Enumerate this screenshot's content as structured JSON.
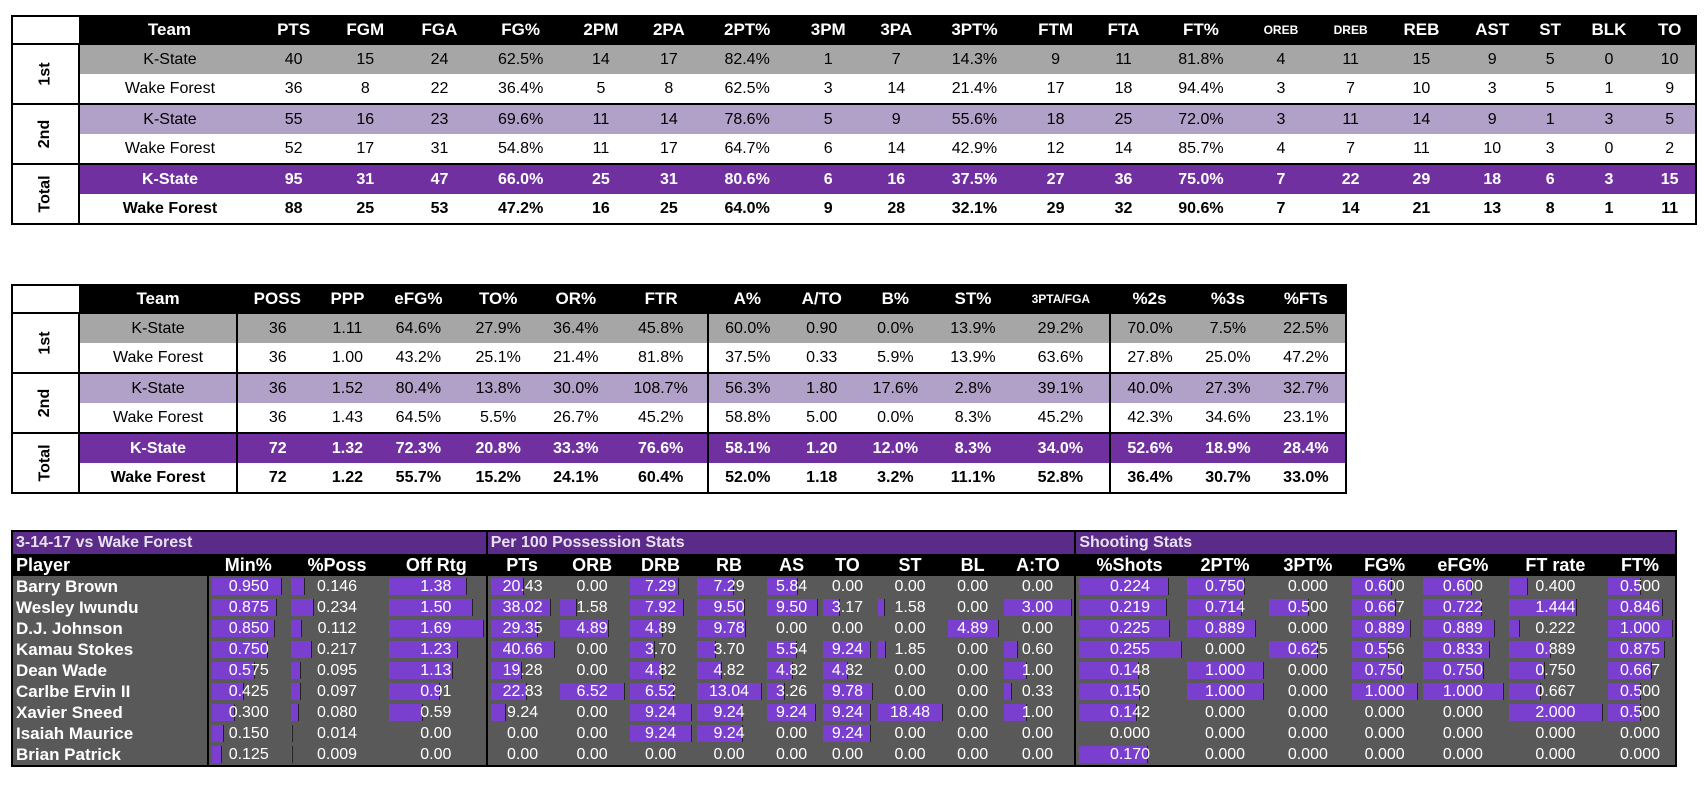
{
  "box_score": {
    "headers": [
      "Team",
      "PTS",
      "FGM",
      "FGA",
      "FG%",
      "2PM",
      "2PA",
      "2PT%",
      "3PM",
      "3PA",
      "3PT%",
      "FTM",
      "FTA",
      "FT%",
      "OREB",
      "DREB",
      "REB",
      "AST",
      "ST",
      "BLK",
      "TO"
    ],
    "periods": [
      {
        "label": "1st",
        "rows": [
          [
            "K-State",
            "40",
            "15",
            "24",
            "62.5%",
            "14",
            "17",
            "82.4%",
            "1",
            "7",
            "14.3%",
            "9",
            "11",
            "81.8%",
            "4",
            "11",
            "15",
            "9",
            "5",
            "0",
            "10"
          ],
          [
            "Wake Forest",
            "36",
            "8",
            "22",
            "36.4%",
            "5",
            "8",
            "62.5%",
            "3",
            "14",
            "21.4%",
            "17",
            "18",
            "94.4%",
            "3",
            "7",
            "10",
            "3",
            "5",
            "1",
            "9"
          ]
        ]
      },
      {
        "label": "2nd",
        "rows": [
          [
            "K-State",
            "55",
            "16",
            "23",
            "69.6%",
            "11",
            "14",
            "78.6%",
            "5",
            "9",
            "55.6%",
            "18",
            "25",
            "72.0%",
            "3",
            "11",
            "14",
            "9",
            "1",
            "3",
            "5"
          ],
          [
            "Wake Forest",
            "52",
            "17",
            "31",
            "54.8%",
            "11",
            "17",
            "64.7%",
            "6",
            "14",
            "42.9%",
            "12",
            "14",
            "85.7%",
            "4",
            "7",
            "11",
            "10",
            "3",
            "0",
            "2"
          ]
        ]
      },
      {
        "label": "Total",
        "rows": [
          [
            "K-State",
            "95",
            "31",
            "47",
            "66.0%",
            "25",
            "31",
            "80.6%",
            "6",
            "16",
            "37.5%",
            "27",
            "36",
            "75.0%",
            "7",
            "22",
            "29",
            "18",
            "6",
            "3",
            "15"
          ],
          [
            "Wake Forest",
            "88",
            "25",
            "53",
            "47.2%",
            "16",
            "25",
            "64.0%",
            "9",
            "28",
            "32.1%",
            "29",
            "32",
            "90.6%",
            "7",
            "14",
            "21",
            "13",
            "8",
            "1",
            "11"
          ]
        ]
      }
    ]
  },
  "advanced": {
    "headers": [
      "Team",
      "POSS",
      "PPP",
      "eFG%",
      "TO%",
      "OR%",
      "FTR",
      "A%",
      "A/TO",
      "B%",
      "ST%",
      "3PTA/FGA",
      "%2s",
      "%3s",
      "%FTs"
    ],
    "periods": [
      {
        "label": "1st",
        "rows": [
          [
            "K-State",
            "36",
            "1.11",
            "64.6%",
            "27.9%",
            "36.4%",
            "45.8%",
            "60.0%",
            "0.90",
            "0.0%",
            "13.9%",
            "29.2%",
            "70.0%",
            "7.5%",
            "22.5%"
          ],
          [
            "Wake Forest",
            "36",
            "1.00",
            "43.2%",
            "25.1%",
            "21.4%",
            "81.8%",
            "37.5%",
            "0.33",
            "5.9%",
            "13.9%",
            "63.6%",
            "27.8%",
            "25.0%",
            "47.2%"
          ]
        ]
      },
      {
        "label": "2nd",
        "rows": [
          [
            "K-State",
            "36",
            "1.52",
            "80.4%",
            "13.8%",
            "30.0%",
            "108.7%",
            "56.3%",
            "1.80",
            "17.6%",
            "2.8%",
            "39.1%",
            "40.0%",
            "27.3%",
            "32.7%"
          ],
          [
            "Wake Forest",
            "36",
            "1.43",
            "64.5%",
            "5.5%",
            "26.7%",
            "45.2%",
            "58.8%",
            "5.00",
            "0.0%",
            "8.3%",
            "45.2%",
            "42.3%",
            "34.6%",
            "23.1%"
          ]
        ]
      },
      {
        "label": "Total",
        "rows": [
          [
            "K-State",
            "72",
            "1.32",
            "72.3%",
            "20.8%",
            "33.3%",
            "76.6%",
            "58.1%",
            "1.20",
            "12.0%",
            "8.3%",
            "34.0%",
            "52.6%",
            "18.9%",
            "28.4%"
          ],
          [
            "Wake Forest",
            "72",
            "1.22",
            "55.7%",
            "15.2%",
            "24.1%",
            "60.4%",
            "52.0%",
            "1.18",
            "3.2%",
            "11.1%",
            "52.8%",
            "36.4%",
            "30.7%",
            "33.0%"
          ]
        ]
      }
    ]
  },
  "players": {
    "group_headers": [
      "3-14-17 vs Wake Forest",
      "Per 100 Possession Stats",
      "Shooting Stats"
    ],
    "headers": [
      "Player",
      "Min%",
      "%Poss",
      "Off Rtg",
      "PTs",
      "ORB",
      "DRB",
      "RB",
      "AS",
      "TO",
      "ST",
      "BL",
      "A:TO",
      "%Shots",
      "2PT%",
      "3PT%",
      "FG%",
      "eFG%",
      "FT rate",
      "FT%"
    ],
    "rows": [
      [
        "Barry Brown",
        "0.950",
        "0.146",
        "1.38",
        "20.43",
        "0.00",
        "7.29",
        "7.29",
        "5.84",
        "0.00",
        "0.00",
        "0.00",
        "0.00",
        "0.224",
        "0.750",
        "0.000",
        "0.600",
        "0.600",
        "0.400",
        "0.500"
      ],
      [
        "Wesley Iwundu",
        "0.875",
        "0.234",
        "1.50",
        "38.02",
        "1.58",
        "7.92",
        "9.50",
        "9.50",
        "3.17",
        "1.58",
        "0.00",
        "3.00",
        "0.219",
        "0.714",
        "0.500",
        "0.667",
        "0.722",
        "1.444",
        "0.846"
      ],
      [
        "D.J. Johnson",
        "0.850",
        "0.112",
        "1.69",
        "29.35",
        "4.89",
        "4.89",
        "9.78",
        "0.00",
        "0.00",
        "0.00",
        "4.89",
        "0.00",
        "0.225",
        "0.889",
        "0.000",
        "0.889",
        "0.889",
        "0.222",
        "1.000"
      ],
      [
        "Kamau Stokes",
        "0.750",
        "0.217",
        "1.23",
        "40.66",
        "0.00",
        "3.70",
        "3.70",
        "5.54",
        "9.24",
        "1.85",
        "0.00",
        "0.60",
        "0.255",
        "0.000",
        "0.625",
        "0.556",
        "0.833",
        "0.889",
        "0.875"
      ],
      [
        "Dean Wade",
        "0.575",
        "0.095",
        "1.13",
        "19.28",
        "0.00",
        "4.82",
        "4.82",
        "4.82",
        "4.82",
        "0.00",
        "0.00",
        "1.00",
        "0.148",
        "1.000",
        "0.000",
        "0.750",
        "0.750",
        "0.750",
        "0.667"
      ],
      [
        "Carlbe Ervin II",
        "0.425",
        "0.097",
        "0.91",
        "22.83",
        "6.52",
        "6.52",
        "13.04",
        "3.26",
        "9.78",
        "0.00",
        "0.00",
        "0.33",
        "0.150",
        "1.000",
        "0.000",
        "1.000",
        "1.000",
        "0.667",
        "0.500"
      ],
      [
        "Xavier Sneed",
        "0.300",
        "0.080",
        "0.59",
        "9.24",
        "0.00",
        "9.24",
        "9.24",
        "9.24",
        "9.24",
        "18.48",
        "0.00",
        "1.00",
        "0.142",
        "0.000",
        "0.000",
        "0.000",
        "0.000",
        "2.000",
        "0.500"
      ],
      [
        "Isaiah Maurice",
        "0.150",
        "0.014",
        "0.00",
        "0.00",
        "0.00",
        "9.24",
        "9.24",
        "0.00",
        "9.24",
        "0.00",
        "0.00",
        "0.00",
        "0.000",
        "0.000",
        "0.000",
        "0.000",
        "0.000",
        "0.000",
        "0.000"
      ],
      [
        "Brian Patrick",
        "0.125",
        "0.009",
        "0.00",
        "0.00",
        "0.00",
        "0.00",
        "0.00",
        "0.00",
        "0.00",
        "0.00",
        "0.00",
        "0.00",
        "0.170",
        "0.000",
        "0.000",
        "0.000",
        "0.000",
        "0.000",
        "0.000"
      ]
    ]
  },
  "colors": {
    "purple": "#7030a0",
    "light_purple": "#b1a0c7",
    "gray": "#a6a6a6",
    "panel_gray": "#595959",
    "bar_purple": "#7b3fd0"
  }
}
